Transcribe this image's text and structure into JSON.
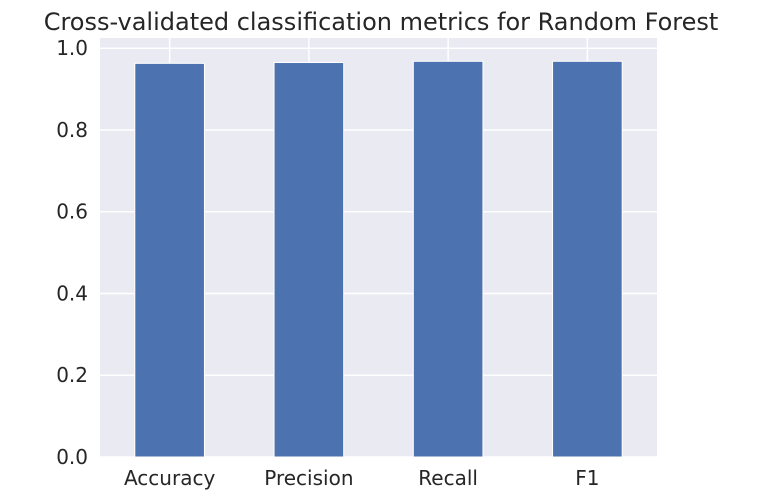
{
  "chart_data": {
    "type": "bar",
    "title": "Cross-validated classification metrics for Random Forest",
    "xlabel": "",
    "ylabel": "",
    "categories": [
      "Accuracy",
      "Precision",
      "Recall",
      "F1"
    ],
    "values": [
      0.963,
      0.965,
      0.968,
      0.968
    ],
    "ylim": [
      0,
      1.0
    ],
    "yticks": [
      0.0,
      0.2,
      0.4,
      0.6,
      0.8,
      1.0
    ],
    "ytick_labels": [
      "0.0",
      "0.2",
      "0.4",
      "0.6",
      "0.8",
      "1.0"
    ],
    "grid": true,
    "legend": "none",
    "colors": {
      "bar": "#4c72b0",
      "plot_background": "#eaeaf2",
      "grid": "#ffffff",
      "text": "#262626"
    }
  }
}
